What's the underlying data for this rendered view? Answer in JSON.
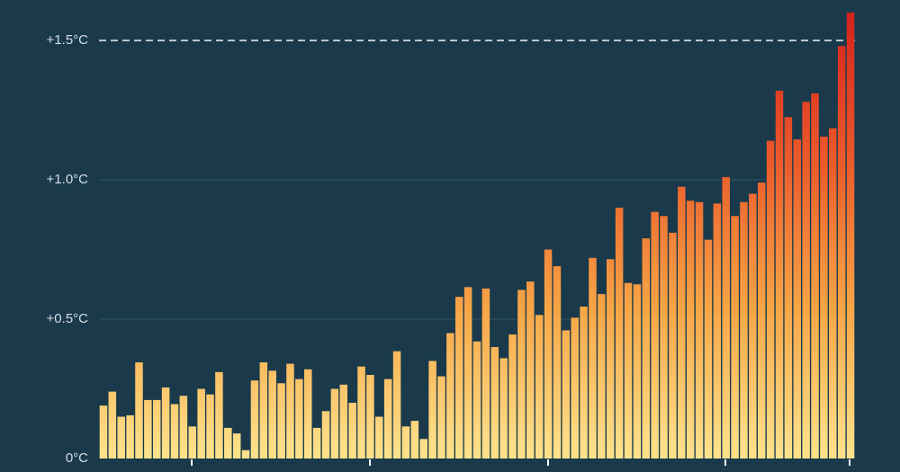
{
  "chart_data": {
    "type": "bar",
    "values": [
      0.19,
      0.24,
      0.15,
      0.155,
      0.345,
      0.21,
      0.21,
      0.255,
      0.195,
      0.225,
      0.115,
      0.25,
      0.23,
      0.31,
      0.11,
      0.09,
      0.03,
      0.28,
      0.345,
      0.315,
      0.27,
      0.34,
      0.285,
      0.32,
      0.11,
      0.17,
      0.25,
      0.265,
      0.2,
      0.33,
      0.3,
      0.15,
      0.285,
      0.385,
      0.115,
      0.135,
      0.07,
      0.35,
      0.295,
      0.45,
      0.58,
      0.615,
      0.42,
      0.61,
      0.4,
      0.36,
      0.445,
      0.605,
      0.635,
      0.515,
      0.75,
      0.69,
      0.46,
      0.505,
      0.545,
      0.72,
      0.59,
      0.715,
      0.9,
      0.63,
      0.625,
      0.79,
      0.885,
      0.87,
      0.81,
      0.975,
      0.925,
      0.92,
      0.785,
      0.915,
      1.01,
      0.87,
      0.92,
      0.95,
      0.99,
      1.14,
      1.32,
      1.225,
      1.145,
      1.28,
      1.31,
      1.155,
      1.185,
      1.48,
      1.6
    ],
    "colors": [
      "#fee38d",
      "#f7a646",
      "#ea5a2b",
      "#d3231d"
    ],
    "ylim": [
      0,
      1.6
    ],
    "yticks": [
      {
        "value": 0,
        "label": "0°C"
      },
      {
        "value": 0.5,
        "label": "+0.5°C"
      },
      {
        "value": 1.0,
        "label": "+1.0°C"
      },
      {
        "value": 1.5,
        "label": "+1.5°C"
      }
    ],
    "reference_line": 1.5,
    "grid": true
  }
}
